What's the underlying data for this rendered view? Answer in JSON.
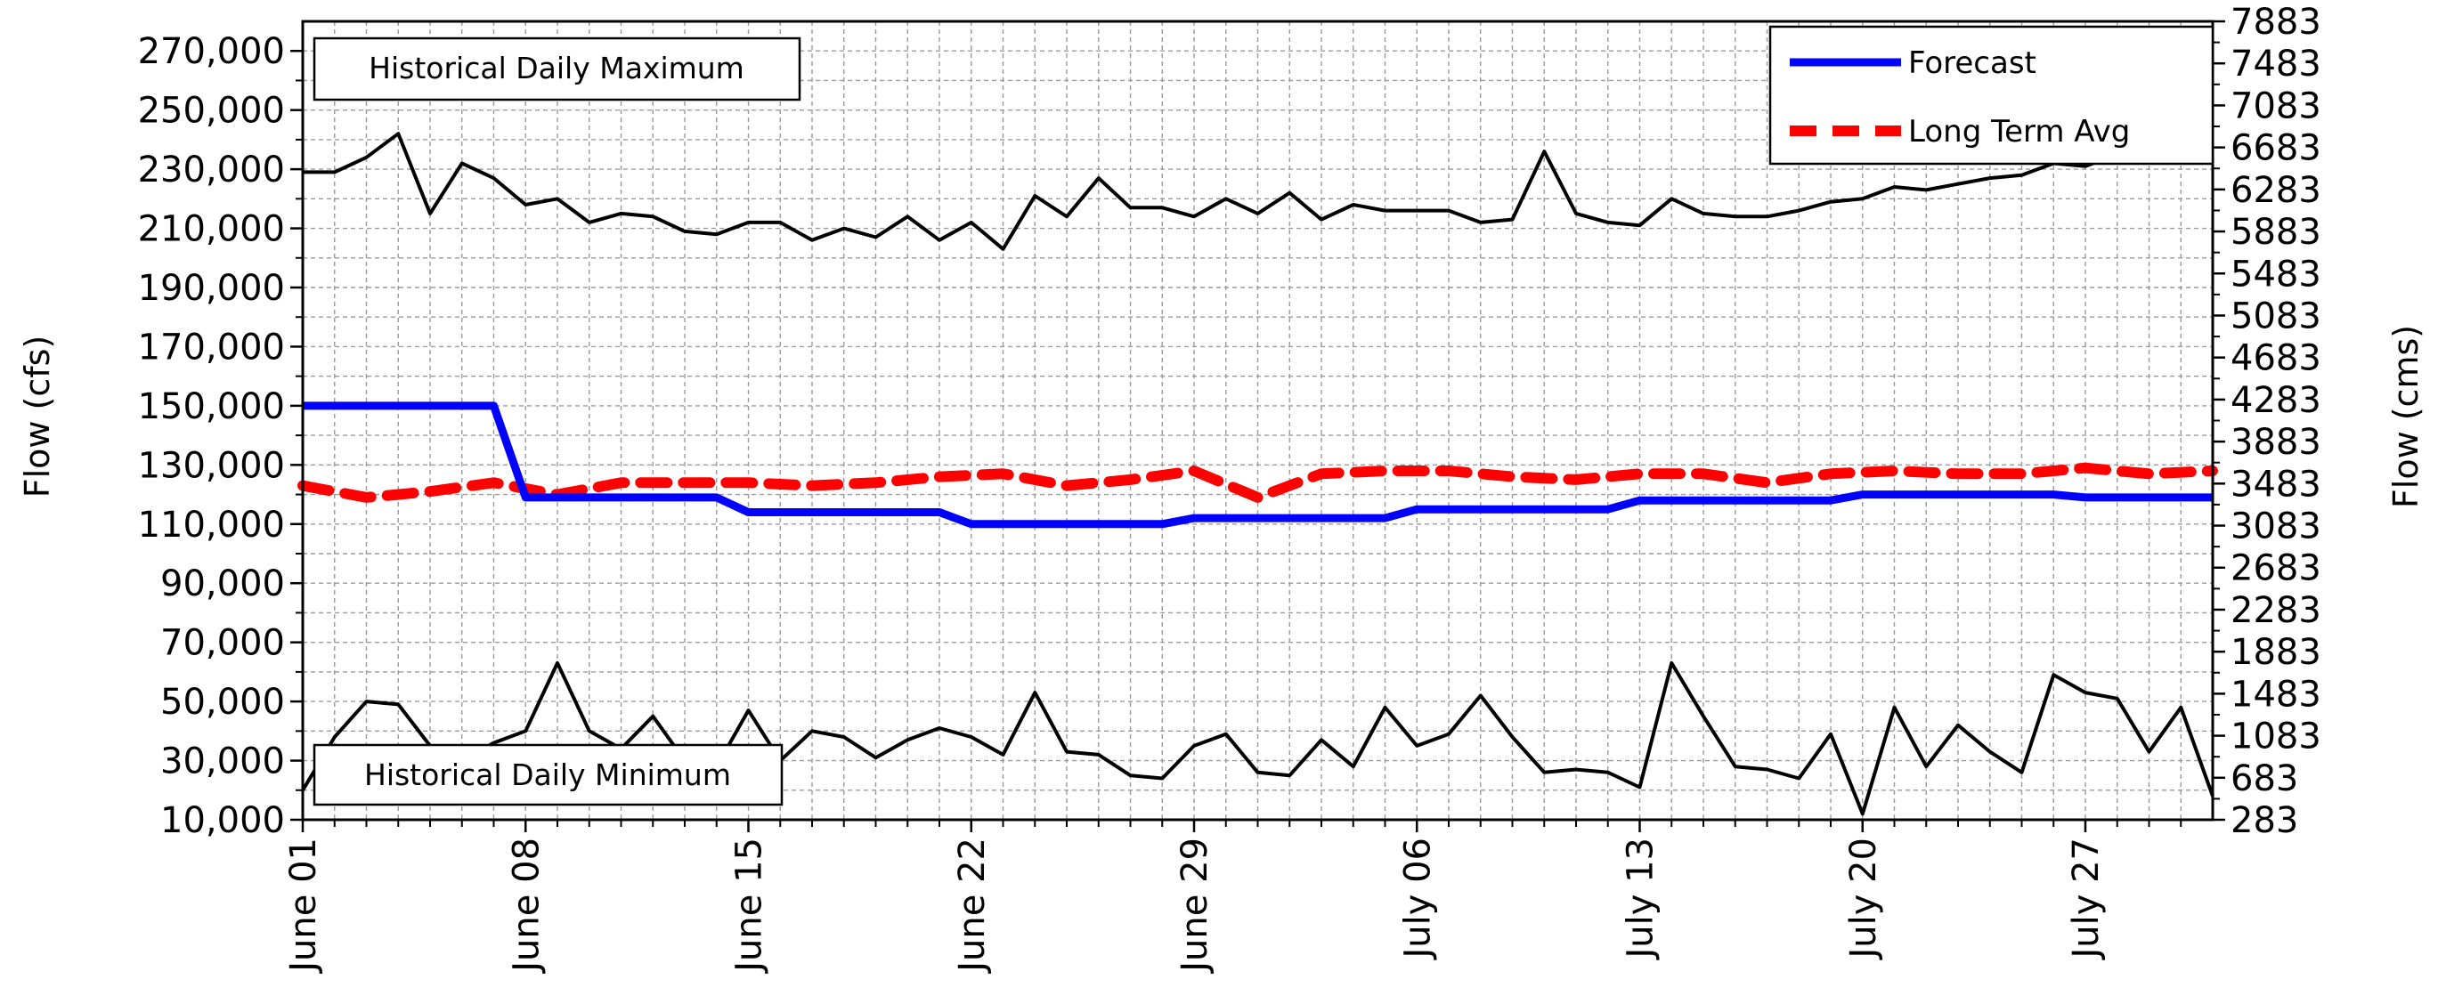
{
  "chart_data": {
    "type": "line",
    "title": "",
    "ylabel": "Flow (cfs)",
    "y2label": "Flow (cms)",
    "x_start": "2024-06-01",
    "x_end": "2024-07-31",
    "x_tick_labels": [
      "June 01",
      "June 08",
      "June 15",
      "June 22",
      "June 29",
      "July 06",
      "July 13",
      "July 20",
      "July 27"
    ],
    "ylim": [
      10000,
      280000
    ],
    "y_ticks": [
      10000,
      30000,
      50000,
      70000,
      90000,
      110000,
      130000,
      150000,
      170000,
      190000,
      210000,
      230000,
      250000,
      270000
    ],
    "y_tick_labels": [
      "10,000",
      "30,000",
      "50,000",
      "70,000",
      "90,000",
      "110,000",
      "130,000",
      "150,000",
      "170,000",
      "190,000",
      "210,000",
      "230,000",
      "250,000",
      "270,000"
    ],
    "y2_ticks": [
      283,
      683,
      1083,
      1483,
      1883,
      2283,
      2683,
      3083,
      3483,
      3883,
      4283,
      4683,
      5083,
      5483,
      5883,
      6283,
      6683,
      7083,
      7483,
      7883
    ],
    "y2_tick_labels": [
      "283",
      "683",
      "1083",
      "1483",
      "1883",
      "2283",
      "2683",
      "3083",
      "3483",
      "3883",
      "4283",
      "4683",
      "5083",
      "5483",
      "5883",
      "6283",
      "6683",
      "7083",
      "7483",
      "7883"
    ],
    "grid": true,
    "legend_position": "top-right",
    "annotations": [
      "Historical Daily Maximum",
      "Historical Daily Minimum"
    ],
    "series": [
      {
        "name": "Forecast",
        "color": "#0000ff",
        "style": "solid",
        "x": [
          "2024-06-01",
          "2024-06-07",
          "2024-06-08",
          "2024-06-14",
          "2024-06-15",
          "2024-06-21",
          "2024-06-22",
          "2024-06-28",
          "2024-06-29",
          "2024-07-05",
          "2024-07-06",
          "2024-07-12",
          "2024-07-13",
          "2024-07-19",
          "2024-07-20",
          "2024-07-26",
          "2024-07-27",
          "2024-07-31"
        ],
        "values": [
          150000,
          150000,
          119000,
          119000,
          114000,
          114000,
          110000,
          110000,
          112000,
          112000,
          115000,
          115000,
          118000,
          118000,
          120000,
          120000,
          119000,
          119000
        ]
      },
      {
        "name": "Long Term Avg",
        "color": "#ff0000",
        "style": "dashed",
        "x": [
          "2024-06-01",
          "2024-06-03",
          "2024-06-05",
          "2024-06-07",
          "2024-06-09",
          "2024-06-11",
          "2024-06-13",
          "2024-06-15",
          "2024-06-17",
          "2024-06-19",
          "2024-06-21",
          "2024-06-23",
          "2024-06-25",
          "2024-06-27",
          "2024-06-29",
          "2024-07-01",
          "2024-07-03",
          "2024-07-05",
          "2024-07-07",
          "2024-07-09",
          "2024-07-11",
          "2024-07-13",
          "2024-07-15",
          "2024-07-17",
          "2024-07-19",
          "2024-07-21",
          "2024-07-23",
          "2024-07-25",
          "2024-07-27",
          "2024-07-29",
          "2024-07-31"
        ],
        "values": [
          123000,
          119000,
          121000,
          124000,
          120000,
          124000,
          124000,
          124000,
          123000,
          124000,
          126000,
          127000,
          123000,
          125000,
          128000,
          119000,
          127000,
          128000,
          128000,
          126000,
          125000,
          127000,
          127000,
          124000,
          127000,
          128000,
          127000,
          127000,
          129000,
          127000,
          128000
        ]
      },
      {
        "name": "Historical Daily Maximum",
        "color": "#000000",
        "style": "solid",
        "x_start": "2024-06-01",
        "values": [
          229000,
          229000,
          234000,
          242000,
          215000,
          232000,
          227000,
          218000,
          220000,
          212000,
          215000,
          214000,
          209000,
          208000,
          212000,
          212000,
          206000,
          210000,
          207000,
          214000,
          206000,
          212000,
          203000,
          221000,
          214000,
          227000,
          217000,
          217000,
          214000,
          220000,
          215000,
          222000,
          213000,
          218000,
          216000,
          216000,
          216000,
          212000,
          213000,
          236000,
          215000,
          212000,
          211000,
          220000,
          215000,
          214000,
          214000,
          216000,
          219000,
          220000,
          224000,
          223000,
          225000,
          227000,
          228000,
          232000,
          231000,
          235000,
          235000,
          236000,
          237000
        ]
      },
      {
        "name": "Historical Daily Minimum",
        "color": "#000000",
        "style": "solid",
        "x_start": "2024-06-01",
        "values": [
          20000,
          38000,
          50000,
          49000,
          35000,
          30000,
          36000,
          40000,
          63000,
          40000,
          34000,
          45000,
          30000,
          28000,
          47000,
          30000,
          40000,
          38000,
          31000,
          37000,
          41000,
          38000,
          32000,
          53000,
          33000,
          32000,
          25000,
          24000,
          35000,
          39000,
          26000,
          25000,
          37000,
          28000,
          48000,
          35000,
          39000,
          52000,
          38000,
          26000,
          27000,
          26000,
          21000,
          63000,
          45000,
          28000,
          27000,
          24000,
          39000,
          12000,
          48000,
          28000,
          42000,
          33000,
          26000,
          59000,
          53000,
          51000,
          33000,
          48000,
          18000
        ]
      }
    ]
  }
}
